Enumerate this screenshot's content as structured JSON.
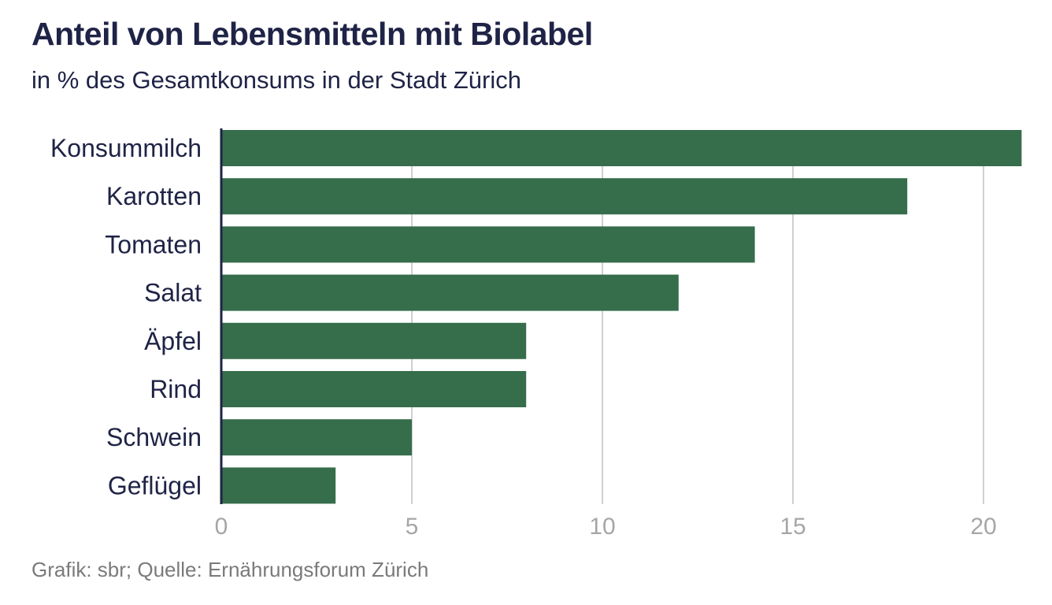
{
  "chart_data": {
    "type": "bar",
    "orientation": "horizontal",
    "title": "Anteil von Lebensmitteln mit Biolabel",
    "subtitle": "in % des Gesamtkonsums in der Stadt Zürich",
    "categories": [
      "Konsummilch",
      "Karotten",
      "Tomaten",
      "Salat",
      "Äpfel",
      "Rind",
      "Schwein",
      "Geflügel"
    ],
    "values": [
      21,
      18,
      14,
      12,
      8,
      8,
      5,
      3
    ],
    "xlabel": "",
    "ylabel": "",
    "xlim": [
      0,
      21
    ],
    "xticks": [
      0,
      5,
      10,
      15,
      20
    ],
    "xtick_labels": [
      "0",
      "5",
      "10",
      "15",
      "20"
    ],
    "grid": true,
    "bar_color": "#366d4b",
    "footer": "Grafik: sbr; Quelle: Ernährungsforum Zürich"
  },
  "colors": {
    "title": "#1f2346",
    "bar": "#366d4b",
    "grid": "#d0d0d0",
    "tick": "#a6a6a6",
    "footer": "#7a7a7a",
    "axis": "#1f2346"
  }
}
